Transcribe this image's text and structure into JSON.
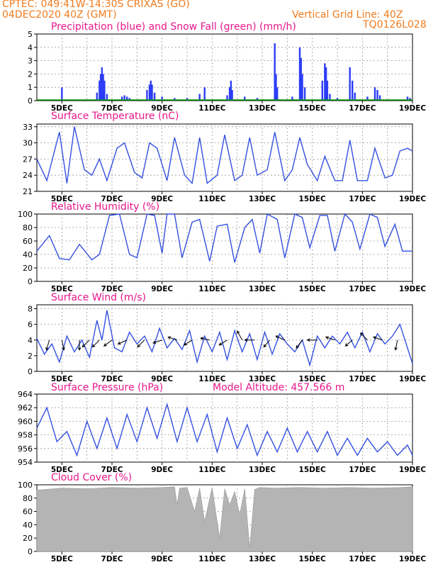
{
  "header": {
    "line1_left": "CPTEC:   049:41W-14:30S   CRIXAS (GO)",
    "line2_left": "04DEC2020 40Z (GMT)",
    "line2_right": "Vertical Grid Line: 40Z",
    "line3_right": "TQ0126L028"
  },
  "colors": {
    "precip": "#2d3df5",
    "snow": "#00a000",
    "line": "#3450e0",
    "cloud": "#b4b4b4",
    "title": "#e8178c",
    "header": "#f07b1e"
  },
  "x_axis": {
    "start_day": 4.0,
    "end_day": 19.0,
    "tick_labels": [
      "5DEC",
      "7DEC",
      "9DEC",
      "11DEC",
      "13DEC",
      "15DEC",
      "17DEC",
      "19DEC"
    ],
    "tick_days": [
      5,
      7,
      9,
      11,
      13,
      15,
      17,
      19
    ]
  },
  "chart_data": [
    {
      "name": "precip",
      "type": "bar",
      "title": "Precipitation (blue) and Snow Fall (green) (mm/h)",
      "ylim": [
        0,
        5
      ],
      "yticks": [
        0,
        1,
        2,
        3,
        4,
        5
      ],
      "series": [
        {
          "name": "Precipitation",
          "x": [
            5.0,
            6.4,
            6.5,
            6.55,
            6.6,
            6.65,
            6.7,
            6.8,
            7.4,
            7.5,
            7.6,
            7.7,
            8.4,
            8.5,
            8.55,
            8.6,
            8.7,
            9.0,
            9.5,
            10.0,
            10.5,
            10.7,
            11.6,
            11.7,
            11.75,
            11.8,
            12.3,
            12.8,
            13.5,
            13.55,
            13.6,
            14.2,
            14.5,
            14.55,
            14.6,
            14.7,
            15.4,
            15.5,
            15.55,
            15.6,
            15.7,
            16.0,
            16.5,
            16.6,
            16.7,
            17.2,
            17.5,
            17.6,
            17.7,
            18.8,
            18.9
          ],
          "values": [
            1.0,
            0.6,
            1.5,
            2.0,
            2.5,
            2.0,
            1.5,
            0.5,
            0.3,
            0.4,
            0.3,
            0.2,
            0.8,
            1.2,
            1.5,
            1.2,
            0.6,
            0.3,
            0.2,
            0.2,
            0.5,
            1.0,
            0.4,
            1.0,
            1.5,
            0.8,
            0.3,
            0.2,
            4.3,
            2.0,
            1.0,
            0.3,
            4.0,
            3.2,
            2.0,
            1.0,
            1.5,
            2.8,
            2.5,
            1.5,
            0.5,
            0.2,
            2.5,
            1.5,
            0.6,
            0.3,
            1.0,
            0.8,
            0.4,
            0.3,
            0.2
          ]
        },
        {
          "name": "Snow Fall",
          "x": [
            4.0,
            19.0
          ],
          "values": [
            0.05,
            0.05
          ]
        }
      ]
    },
    {
      "name": "temperature",
      "type": "line",
      "title": "Surface Temperature (nC)",
      "ylim": [
        21,
        33.5
      ],
      "yticks": [
        21,
        24,
        27,
        30,
        33
      ],
      "x": [
        4.0,
        4.4,
        4.9,
        5.2,
        5.5,
        5.9,
        6.2,
        6.5,
        6.8,
        7.2,
        7.5,
        7.9,
        8.2,
        8.5,
        8.8,
        9.2,
        9.5,
        9.9,
        10.2,
        10.5,
        10.8,
        11.2,
        11.5,
        11.9,
        12.2,
        12.5,
        12.8,
        13.2,
        13.5,
        13.9,
        14.2,
        14.5,
        14.8,
        15.2,
        15.5,
        15.9,
        16.2,
        16.5,
        16.8,
        17.2,
        17.5,
        17.9,
        18.2,
        18.5,
        18.8,
        19.0
      ],
      "values": [
        27,
        23,
        32,
        22.5,
        33,
        25,
        24,
        27,
        23,
        29,
        30,
        24.5,
        23.5,
        30,
        29,
        23,
        31,
        24,
        22.5,
        31,
        22.5,
        24,
        31.5,
        23,
        24,
        31,
        24,
        25,
        32,
        23,
        25,
        31,
        26,
        23,
        27.5,
        23,
        23,
        30.5,
        23,
        23,
        29,
        23.5,
        24,
        28.5,
        29,
        28.5
      ]
    },
    {
      "name": "humidity",
      "type": "line",
      "title": "Relative Humidity (%)",
      "ylim": [
        0,
        100
      ],
      "yticks": [
        0,
        20,
        40,
        60,
        80,
        100
      ],
      "x": [
        4.0,
        4.5,
        4.9,
        5.3,
        5.7,
        6.2,
        6.5,
        6.9,
        7.3,
        7.7,
        8.0,
        8.4,
        8.7,
        9.0,
        9.2,
        9.5,
        9.8,
        10.2,
        10.5,
        10.9,
        11.2,
        11.6,
        11.9,
        12.3,
        12.6,
        12.9,
        13.2,
        13.6,
        13.9,
        14.3,
        14.6,
        14.9,
        15.3,
        15.6,
        15.9,
        16.3,
        16.6,
        16.9,
        17.3,
        17.6,
        17.9,
        18.3,
        18.6,
        19.0
      ],
      "values": [
        45,
        68,
        34,
        32,
        55,
        32,
        40,
        98,
        100,
        40,
        35,
        100,
        98,
        42,
        100,
        100,
        35,
        88,
        92,
        30,
        82,
        85,
        28,
        80,
        92,
        42,
        100,
        92,
        35,
        100,
        95,
        50,
        98,
        98,
        45,
        100,
        88,
        48,
        100,
        95,
        52,
        85,
        45,
        45
      ]
    },
    {
      "name": "wind",
      "type": "line",
      "title": "Surface Wind (m/s)",
      "ylim": [
        0,
        8.5
      ],
      "yticks": [
        0,
        2,
        4,
        6,
        8
      ],
      "x": [
        4.0,
        4.3,
        4.6,
        4.9,
        5.2,
        5.5,
        5.8,
        6.1,
        6.4,
        6.6,
        6.8,
        7.1,
        7.4,
        7.7,
        8.0,
        8.3,
        8.6,
        8.9,
        9.2,
        9.5,
        9.8,
        10.1,
        10.4,
        10.7,
        11.0,
        11.3,
        11.6,
        11.9,
        12.2,
        12.5,
        12.8,
        13.1,
        13.4,
        13.7,
        14.0,
        14.3,
        14.6,
        14.9,
        15.2,
        15.5,
        15.8,
        16.1,
        16.4,
        16.7,
        17.0,
        17.3,
        17.6,
        17.9,
        18.2,
        18.5,
        18.8,
        19.0
      ],
      "values": [
        4.2,
        2.2,
        3.5,
        1.2,
        4.5,
        2.5,
        4.0,
        1.8,
        6.5,
        4.0,
        7.8,
        3.0,
        2.5,
        5.0,
        3.5,
        4.5,
        2.5,
        5.5,
        3.0,
        4.2,
        2.8,
        5.2,
        1.2,
        4.5,
        2.5,
        5.0,
        1.5,
        5.2,
        2.5,
        4.8,
        1.5,
        5.0,
        2.2,
        4.8,
        3.5,
        2.5,
        4.0,
        0.8,
        4.5,
        3.0,
        4.5,
        3.5,
        5.0,
        3.0,
        5.0,
        2.5,
        4.8,
        3.5,
        4.5,
        6.0,
        3.0,
        1.0
      ],
      "arrows": [
        [
          4.5,
          -0.3,
          -1
        ],
        [
          5.0,
          0.2,
          -1
        ],
        [
          5.7,
          0,
          -1
        ],
        [
          6.1,
          -0.7,
          -0.7
        ],
        [
          6.5,
          -0.7,
          -0.7
        ],
        [
          7.0,
          -0.8,
          -0.6
        ],
        [
          7.6,
          -0.9,
          -0.4
        ],
        [
          8.3,
          -0.7,
          -0.7
        ],
        [
          9.0,
          -0.9,
          -0.3
        ],
        [
          9.6,
          -0.9,
          0.3
        ],
        [
          10.2,
          -0.8,
          -0.5
        ],
        [
          10.9,
          -0.9,
          0.2
        ],
        [
          11.6,
          -0.8,
          -0.5
        ],
        [
          12.2,
          -0.5,
          0.9
        ],
        [
          12.7,
          -1,
          0
        ],
        [
          13.3,
          -0.6,
          -0.7
        ],
        [
          13.9,
          -0.9,
          0.4
        ],
        [
          14.6,
          -0.6,
          -0.8
        ],
        [
          15.2,
          -1,
          0
        ],
        [
          15.9,
          -0.9,
          0.3
        ],
        [
          16.6,
          -0.7,
          -0.6
        ],
        [
          17.2,
          -0.7,
          0.7
        ],
        [
          17.8,
          -0.9,
          0.3
        ],
        [
          18.4,
          -0.2,
          -1
        ]
      ]
    },
    {
      "name": "pressure",
      "type": "line",
      "title": "Surface Pressure (hPa)",
      "subtitle": "Model Altitude: 457.566 m",
      "ylim": [
        954,
        964
      ],
      "yticks": [
        954,
        956,
        958,
        960,
        962,
        964
      ],
      "x": [
        4.0,
        4.4,
        4.8,
        5.2,
        5.6,
        6.0,
        6.4,
        6.8,
        7.2,
        7.6,
        8.0,
        8.4,
        8.8,
        9.2,
        9.6,
        10.0,
        10.4,
        10.8,
        11.2,
        11.6,
        12.0,
        12.4,
        12.8,
        13.2,
        13.6,
        14.0,
        14.4,
        14.8,
        15.2,
        15.6,
        16.0,
        16.4,
        16.8,
        17.2,
        17.6,
        18.0,
        18.4,
        18.8,
        19.0
      ],
      "values": [
        959,
        962,
        957,
        958.5,
        955,
        960,
        956,
        960.5,
        956,
        961,
        957,
        962,
        957.5,
        962.5,
        957,
        962,
        957,
        961,
        955.5,
        960.5,
        956,
        959.5,
        955,
        958.5,
        955.5,
        959,
        955.5,
        958.5,
        955.5,
        958.5,
        955,
        957.5,
        955,
        957.5,
        955.5,
        957,
        955,
        956.5,
        955
      ]
    },
    {
      "name": "cloud",
      "type": "area",
      "title": "Cloud Cover (%)",
      "ylim": [
        0,
        100
      ],
      "yticks": [
        0,
        20,
        40,
        60,
        80,
        100
      ],
      "x": [
        4.0,
        5.0,
        6.0,
        7.0,
        8.0,
        9.0,
        9.5,
        9.6,
        9.7,
        10.0,
        10.3,
        10.5,
        10.7,
        11.0,
        11.3,
        11.5,
        11.7,
        11.9,
        12.1,
        12.3,
        12.5,
        12.7,
        12.9,
        13.5,
        14.5,
        15.5,
        16.5,
        17.5,
        18.5,
        19.0
      ],
      "values": [
        92,
        95,
        94,
        96,
        95,
        96,
        97,
        70,
        95,
        96,
        60,
        95,
        45,
        96,
        20,
        94,
        70,
        90,
        55,
        94,
        5,
        93,
        96,
        95,
        96,
        95,
        96,
        95,
        96,
        97
      ]
    }
  ]
}
